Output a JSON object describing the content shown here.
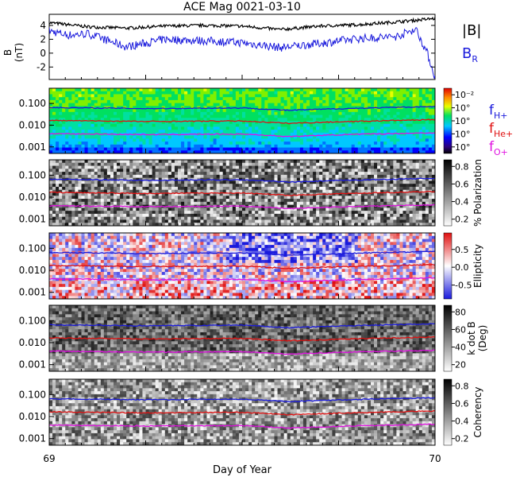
{
  "title": "ACE Mag 0021-03-10",
  "xlabel": "Day of Year",
  "x_ticks": [
    "69",
    "70"
  ],
  "legend_top": [
    {
      "label": "|B|",
      "color": "#000000"
    },
    {
      "label": "B",
      "sub": "R",
      "color": "#1a1adc"
    }
  ],
  "legend_freq": [
    {
      "label": "f",
      "sub": "H+",
      "color": "#1a1adc"
    },
    {
      "label": "f",
      "sub": "He+",
      "color": "#e01010"
    },
    {
      "label": "f",
      "sub": "O+",
      "color": "#e010e0"
    }
  ],
  "panel1": {
    "ylabel": "B",
    "yunit": "(nT)",
    "ticks": [
      "4",
      "2",
      "0",
      "-2"
    ]
  },
  "freq_ticks": [
    "0.100",
    "0.010",
    "0.001"
  ],
  "colorbars": [
    {
      "key": "power",
      "label": "",
      "ticks": [
        "10⁻²",
        "10°",
        "10°",
        "10°",
        "10°"
      ]
    },
    {
      "key": "polarization",
      "label": "% Polarization",
      "ticks": [
        "0.8",
        "0.6",
        "0.4",
        "0.2"
      ]
    },
    {
      "key": "ellipticity",
      "label": "Ellipticity",
      "ticks": [
        "0.5",
        "0.0",
        "-0.5"
      ]
    },
    {
      "key": "kdotb",
      "label": "k dot B",
      "label2": "(Deg)",
      "ticks": [
        "80",
        "60",
        "40",
        "20"
      ]
    },
    {
      "key": "coherency",
      "label": "Coherency",
      "ticks": [
        "0.8",
        "0.6",
        "0.4",
        "0.2"
      ]
    }
  ],
  "chart_data": {
    "type": "line",
    "title": "ACE Mag 0021-03-10",
    "xlabel": "Day of Year",
    "xlim": [
      69,
      70
    ],
    "series": [
      {
        "name": "|B|",
        "x": [
          69.0,
          69.1,
          69.2,
          69.3,
          69.4,
          69.5,
          69.6,
          69.7,
          69.8,
          69.9,
          69.96,
          70.0
        ],
        "y": [
          4.4,
          3.8,
          3.6,
          3.9,
          4.0,
          3.9,
          3.4,
          3.9,
          4.1,
          4.5,
          4.8,
          5.0
        ]
      },
      {
        "name": "B_R",
        "x": [
          69.0,
          69.05,
          69.1,
          69.2,
          69.3,
          69.4,
          69.5,
          69.6,
          69.7,
          69.8,
          69.9,
          69.95,
          69.98,
          70.0
        ],
        "y": [
          3.2,
          2.6,
          2.8,
          0.9,
          2.0,
          1.8,
          1.5,
          0.8,
          1.4,
          2.1,
          2.4,
          3.5,
          0.0,
          -3.5
        ]
      },
      {
        "name": "f_H+",
        "x": [
          69.0,
          69.25,
          69.5,
          69.62,
          69.75,
          70.0
        ],
        "y": [
          0.065,
          0.058,
          0.062,
          0.048,
          0.057,
          0.072
        ]
      },
      {
        "name": "f_He+",
        "x": [
          69.0,
          69.25,
          69.5,
          69.62,
          69.75,
          70.0
        ],
        "y": [
          0.0165,
          0.0148,
          0.0156,
          0.0121,
          0.0143,
          0.018
        ]
      },
      {
        "name": "f_O+",
        "x": [
          69.0,
          69.25,
          69.5,
          69.62,
          69.75,
          70.0
        ],
        "y": [
          0.0041,
          0.0037,
          0.0039,
          0.003,
          0.0036,
          0.0045
        ]
      }
    ]
  }
}
